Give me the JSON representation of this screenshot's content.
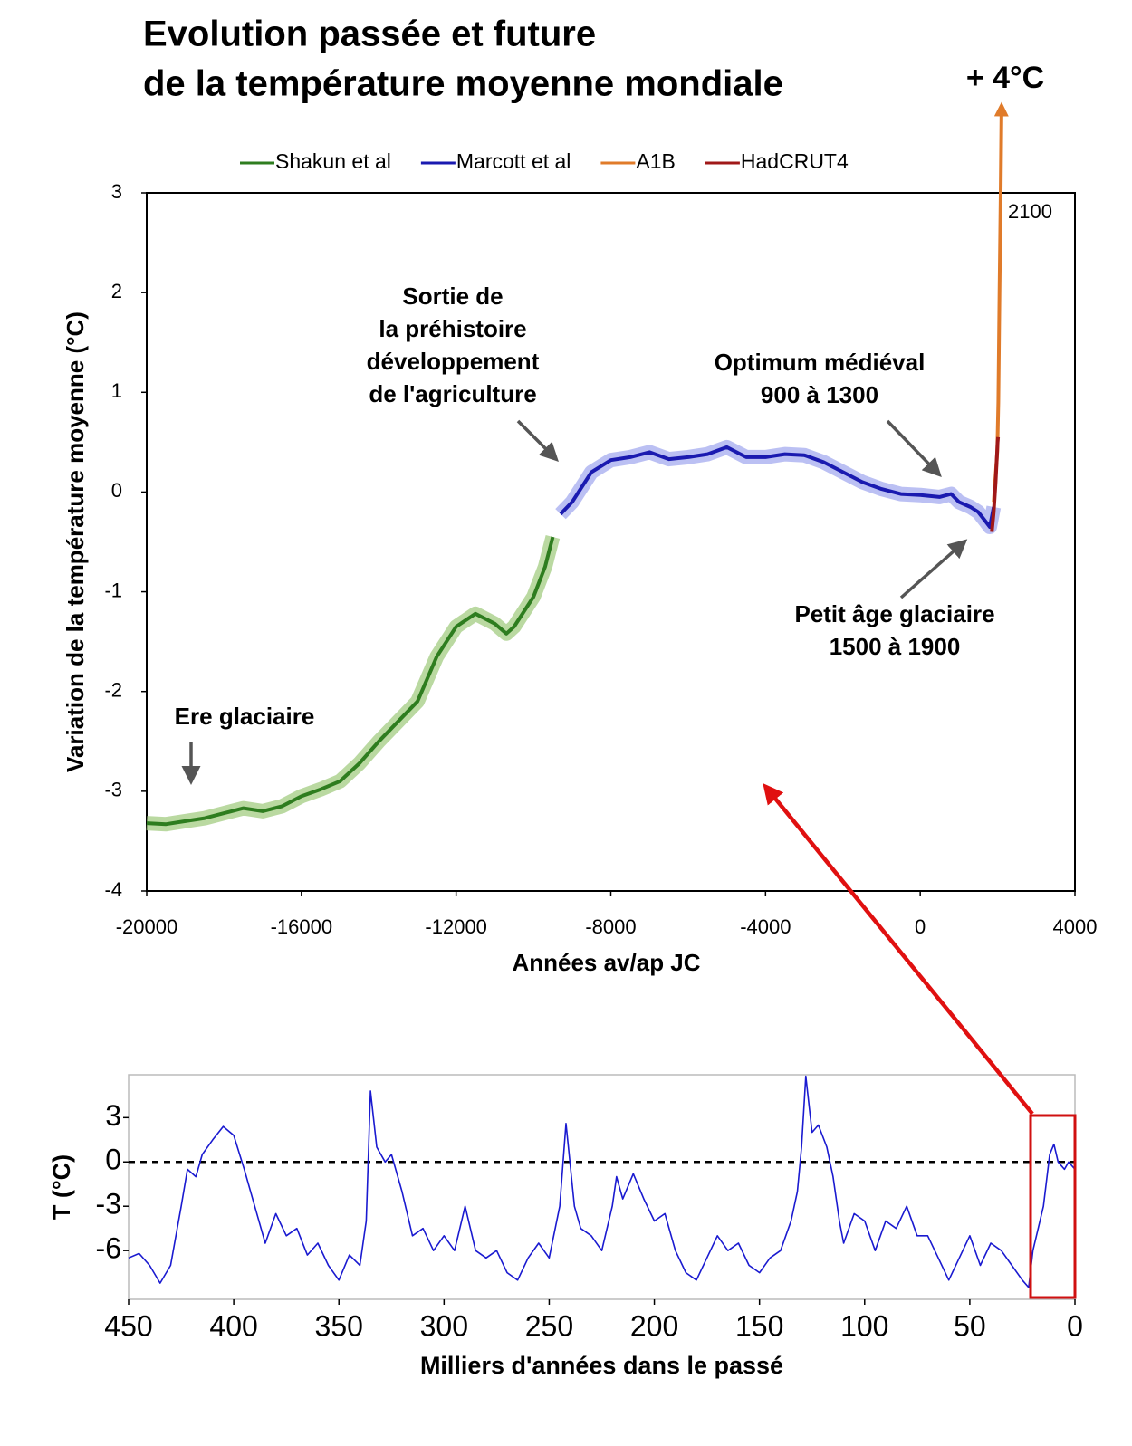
{
  "chart_data": [
    {
      "type": "line",
      "title": [
        "Evolution passée et future",
        "de la température moyenne mondiale"
      ],
      "x_label": "Années av/ap JC",
      "y_label": "Variation de la température moyenne (°C)",
      "xlim": [
        -20000,
        4000
      ],
      "xticks": [
        -20000,
        -16000,
        -12000,
        -8000,
        -4000,
        0,
        4000
      ],
      "ylim": [
        -4,
        3
      ],
      "yticks": [
        -4,
        -3,
        -2,
        -1,
        0,
        1,
        2,
        3
      ],
      "legend": "top",
      "series": [
        {
          "name": "Shakun et al",
          "color": "#2e7d1f",
          "band_color": "#a9cf8a",
          "x": [
            -20000,
            -19500,
            -19000,
            -18500,
            -18000,
            -17500,
            -17000,
            -16500,
            -16000,
            -15500,
            -15000,
            -14500,
            -14000,
            -13500,
            -13000,
            -12500,
            -12000,
            -11500,
            -11000,
            -10700,
            -10500,
            -10000,
            -9700,
            -9500
          ],
          "values": [
            -3.32,
            -3.33,
            -3.3,
            -3.27,
            -3.22,
            -3.17,
            -3.2,
            -3.15,
            -3.05,
            -2.98,
            -2.9,
            -2.72,
            -2.5,
            -2.3,
            -2.1,
            -1.65,
            -1.35,
            -1.22,
            -1.32,
            -1.42,
            -1.35,
            -1.05,
            -0.75,
            -0.45
          ]
        },
        {
          "name": "Marcott et al",
          "color": "#1a1ab0",
          "band_color": "#aab0f0",
          "x": [
            -9300,
            -9000,
            -8500,
            -8000,
            -7500,
            -7000,
            -6500,
            -6000,
            -5500,
            -5000,
            -4500,
            -4000,
            -3500,
            -3000,
            -2500,
            -2000,
            -1500,
            -1000,
            -500,
            0,
            500,
            800,
            1000,
            1300,
            1500,
            1700,
            1800,
            1900
          ],
          "values": [
            -0.22,
            -0.1,
            0.2,
            0.32,
            0.35,
            0.4,
            0.33,
            0.35,
            0.38,
            0.45,
            0.35,
            0.35,
            0.38,
            0.37,
            0.3,
            0.2,
            0.1,
            0.03,
            -0.02,
            -0.03,
            -0.05,
            -0.02,
            -0.1,
            -0.15,
            -0.2,
            -0.3,
            -0.35,
            -0.15
          ]
        },
        {
          "name": "A1B",
          "color": "#e07b2a",
          "x": [
            1900,
            1990,
            2020,
            2050,
            2080,
            2100
          ],
          "values": [
            -0.1,
            0.4,
            0.9,
            2.0,
            3.0,
            3.84
          ]
        },
        {
          "name": "HadCRUT4",
          "color": "#a01818",
          "x": [
            1850,
            1900,
            1950,
            2000,
            2012
          ],
          "values": [
            -0.4,
            -0.2,
            0.1,
            0.5,
            0.55
          ]
        }
      ],
      "annotations": [
        {
          "lines": [
            "+ 4°C"
          ]
        },
        {
          "lines": [
            "2100"
          ]
        },
        {
          "lines": [
            "Sortie de",
            "la préhistoire",
            "développement",
            "de l'agriculture"
          ]
        },
        {
          "lines": [
            "Optimum médiéval",
            "900 à 1300"
          ]
        },
        {
          "lines": [
            "Petit âge glaciaire",
            "1500 à 1900"
          ]
        },
        {
          "lines": [
            "Ere glaciaire"
          ]
        }
      ]
    },
    {
      "type": "line",
      "x_label": "Milliers d'années dans le passé",
      "y_label": "T (°C)",
      "xlim": [
        450,
        0
      ],
      "xticks": [
        450,
        400,
        350,
        300,
        250,
        200,
        150,
        100,
        50,
        0
      ],
      "ylim": [
        -9.3,
        5.9
      ],
      "yticks": [
        -6,
        -3,
        0,
        3
      ],
      "hline": 0,
      "series": [
        {
          "color": "#1a1ad0",
          "x": [
            450,
            445,
            440,
            435,
            430,
            425,
            422,
            418,
            415,
            410,
            405,
            400,
            395,
            390,
            385,
            380,
            375,
            370,
            365,
            360,
            355,
            350,
            345,
            340,
            337,
            335,
            332,
            328,
            325,
            320,
            315,
            310,
            305,
            300,
            295,
            290,
            285,
            280,
            275,
            270,
            265,
            260,
            255,
            250,
            245,
            242,
            238,
            235,
            230,
            225,
            220,
            218,
            215,
            210,
            205,
            200,
            195,
            190,
            185,
            180,
            175,
            170,
            165,
            160,
            155,
            150,
            145,
            140,
            135,
            132,
            130,
            128,
            125,
            122,
            118,
            115,
            112,
            110,
            105,
            100,
            95,
            90,
            85,
            80,
            75,
            70,
            65,
            60,
            55,
            50,
            45,
            40,
            35,
            30,
            25,
            22,
            20,
            15,
            12,
            10,
            8,
            5,
            3,
            0
          ],
          "values": [
            -6.5,
            -6.2,
            -7,
            -8.2,
            -7,
            -3,
            -0.5,
            -1,
            0.5,
            1.5,
            2.4,
            1.8,
            -0.5,
            -3,
            -5.5,
            -3.5,
            -5,
            -4.5,
            -6.3,
            -5.5,
            -7,
            -8,
            -6.3,
            -7,
            -4,
            4.8,
            1,
            0,
            0.5,
            -2,
            -5,
            -4.5,
            -6,
            -5,
            -6,
            -3,
            -6,
            -6.5,
            -6,
            -7.5,
            -8,
            -6.5,
            -5.5,
            -6.5,
            -3,
            2.6,
            -3,
            -4.5,
            -5,
            -6,
            -3,
            -1,
            -2.5,
            -0.8,
            -2.5,
            -4,
            -3.5,
            -6,
            -7.5,
            -8,
            -6.5,
            -5,
            -6,
            -5.5,
            -7,
            -7.5,
            -6.5,
            -6,
            -4,
            -2,
            1,
            5.8,
            2,
            2.5,
            1,
            -1,
            -4,
            -5.5,
            -3.5,
            -4,
            -6,
            -4,
            -4.5,
            -3,
            -5,
            -5,
            -6.5,
            -8,
            -6.5,
            -5,
            -7,
            -5.5,
            -6,
            -7,
            -8,
            -8.5,
            -6,
            -3,
            0.5,
            1.2,
            0,
            -0.5,
            0,
            -0.5
          ]
        }
      ]
    }
  ]
}
